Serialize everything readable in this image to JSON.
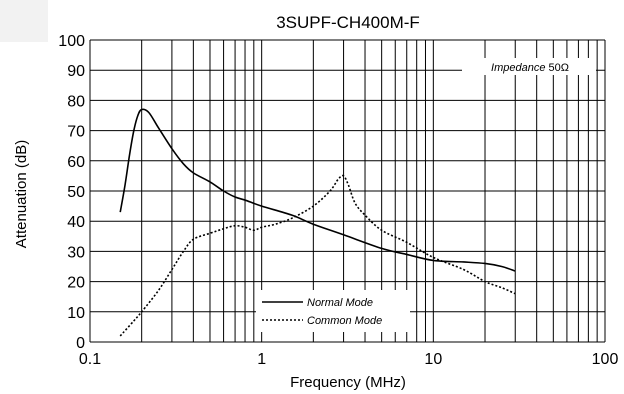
{
  "chart_data": {
    "type": "line",
    "title": "3SUPF-CH400M-F",
    "xlabel": "Frequency (MHz)",
    "ylabel": "Attenuation (dB)",
    "x_scale": "log",
    "xlim": [
      0.1,
      100
    ],
    "ylim": [
      0,
      100
    ],
    "x_ticks": [
      {
        "value": 0.1,
        "label": "0.1"
      },
      {
        "value": 1,
        "label": "1"
      },
      {
        "value": 10,
        "label": "10"
      },
      {
        "value": 100,
        "label": "100"
      }
    ],
    "y_ticks": [
      0,
      10,
      20,
      30,
      40,
      50,
      60,
      70,
      80,
      90,
      100
    ],
    "grid": true,
    "annotation": {
      "italic_part": "Impedance",
      "value_part": "50Ω",
      "position": "top-right"
    },
    "legend": {
      "position": "bottom-center"
    },
    "series": [
      {
        "name": "Normal Mode",
        "line_style": "solid",
        "color": "#000000",
        "points": [
          [
            0.15,
            43
          ],
          [
            0.16,
            52
          ],
          [
            0.17,
            62
          ],
          [
            0.18,
            70
          ],
          [
            0.19,
            75
          ],
          [
            0.2,
            77
          ],
          [
            0.22,
            76
          ],
          [
            0.25,
            71
          ],
          [
            0.3,
            64
          ],
          [
            0.35,
            59
          ],
          [
            0.4,
            56
          ],
          [
            0.5,
            53
          ],
          [
            0.6,
            50
          ],
          [
            0.7,
            48
          ],
          [
            0.8,
            47
          ],
          [
            1.0,
            45
          ],
          [
            1.5,
            42
          ],
          [
            2.0,
            39
          ],
          [
            3.0,
            35.5
          ],
          [
            5.0,
            31
          ],
          [
            7.0,
            29
          ],
          [
            10,
            27
          ],
          [
            15,
            26.5
          ],
          [
            20,
            26
          ],
          [
            25,
            25
          ],
          [
            30,
            23.5
          ]
        ]
      },
      {
        "name": "Common Mode",
        "line_style": "dotted",
        "color": "#000000",
        "points": [
          [
            0.15,
            2
          ],
          [
            0.18,
            7
          ],
          [
            0.2,
            10
          ],
          [
            0.25,
            17
          ],
          [
            0.3,
            24
          ],
          [
            0.35,
            30
          ],
          [
            0.4,
            34
          ],
          [
            0.5,
            36
          ],
          [
            0.6,
            37.5
          ],
          [
            0.7,
            38.5
          ],
          [
            0.8,
            38
          ],
          [
            0.9,
            37
          ],
          [
            1.0,
            38
          ],
          [
            1.2,
            39
          ],
          [
            1.5,
            41
          ],
          [
            2.0,
            45
          ],
          [
            2.5,
            50
          ],
          [
            2.8,
            54
          ],
          [
            3.0,
            55
          ],
          [
            3.2,
            52
          ],
          [
            3.5,
            46
          ],
          [
            4.0,
            42
          ],
          [
            5.0,
            37
          ],
          [
            7.0,
            33
          ],
          [
            10,
            28
          ],
          [
            15,
            24
          ],
          [
            20,
            20
          ],
          [
            25,
            18
          ],
          [
            30,
            16
          ]
        ]
      }
    ]
  }
}
